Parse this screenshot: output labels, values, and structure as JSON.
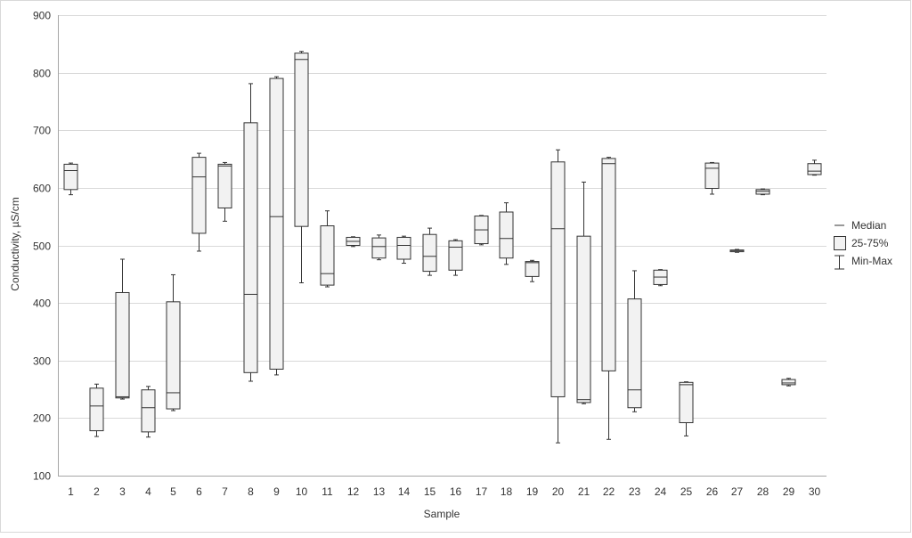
{
  "chart_data": {
    "type": "box",
    "xlabel": "Sample",
    "ylabel": "Conductivity, µS/cm",
    "ylim": [
      100,
      900
    ],
    "yticks": [
      100,
      200,
      300,
      400,
      500,
      600,
      700,
      800,
      900
    ],
    "grid": true,
    "legend": {
      "placement": "right",
      "entries": [
        "Median",
        "25-75%",
        "Min-Max"
      ]
    },
    "categories": [
      "1",
      "2",
      "3",
      "4",
      "5",
      "6",
      "7",
      "8",
      "9",
      "10",
      "11",
      "12",
      "13",
      "14",
      "15",
      "16",
      "17",
      "18",
      "19",
      "20",
      "21",
      "22",
      "23",
      "24",
      "25",
      "26",
      "27",
      "28",
      "29",
      "30"
    ],
    "min": [
      588,
      168,
      233,
      167,
      213,
      490,
      542,
      264,
      275,
      435,
      428,
      498,
      475,
      469,
      448,
      448,
      501,
      467,
      437,
      157,
      225,
      163,
      211,
      430,
      169,
      589,
      488,
      588,
      256,
      622
    ],
    "q1": [
      597,
      178,
      235,
      176,
      216,
      521,
      565,
      279,
      285,
      533,
      431,
      500,
      478,
      476,
      455,
      457,
      503,
      478,
      446,
      237,
      227,
      282,
      218,
      432,
      192,
      599,
      489,
      589,
      258,
      623
    ],
    "median": [
      630,
      221,
      237,
      218,
      244,
      619,
      638,
      415,
      550,
      823,
      451,
      507,
      498,
      500,
      481,
      497,
      527,
      512,
      470,
      529,
      232,
      642,
      249,
      445,
      258,
      634,
      491,
      594,
      261,
      629
    ],
    "q3": [
      641,
      252,
      418,
      249,
      402,
      653,
      641,
      713,
      790,
      834,
      534,
      514,
      513,
      514,
      519,
      508,
      551,
      558,
      472,
      645,
      516,
      651,
      407,
      457,
      262,
      643,
      492,
      597,
      267,
      642
    ],
    "max": [
      643,
      259,
      476,
      255,
      449,
      660,
      644,
      781,
      793,
      837,
      560,
      515,
      518,
      516,
      530,
      510,
      552,
      574,
      474,
      666,
      610,
      653,
      456,
      458,
      263,
      644,
      493,
      598,
      269,
      648
    ]
  }
}
